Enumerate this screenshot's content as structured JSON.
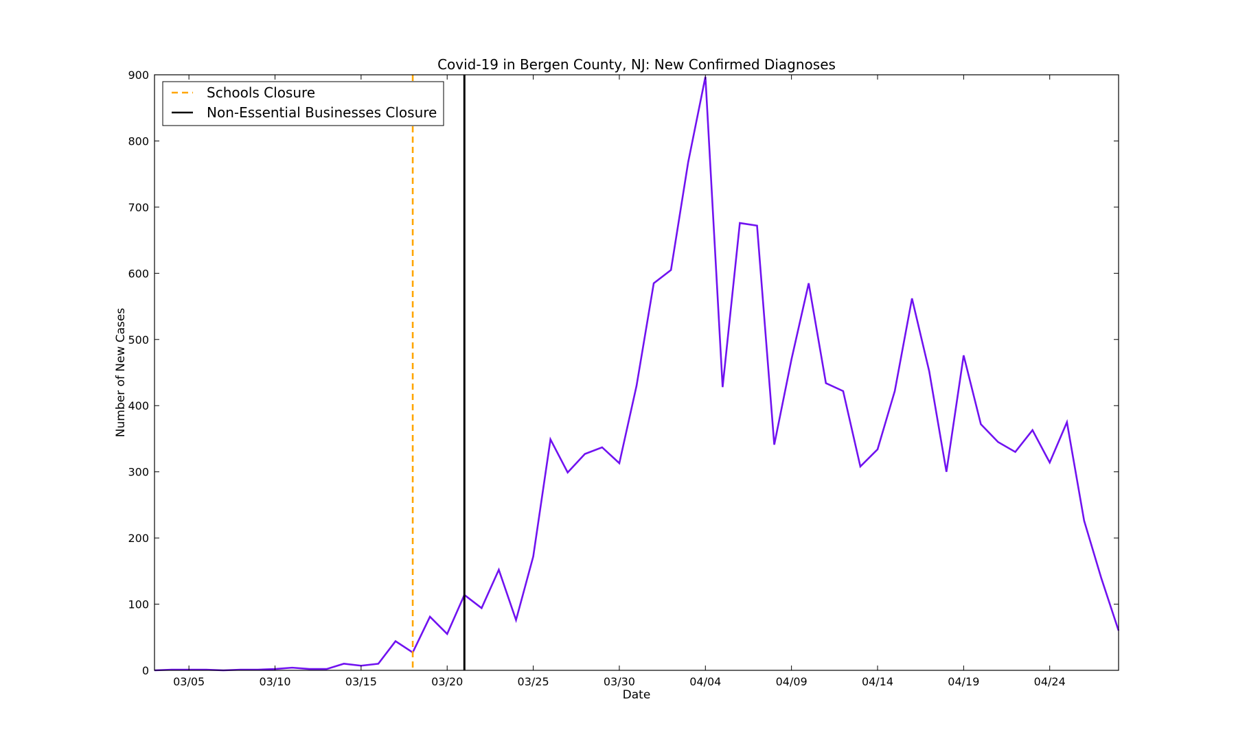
{
  "chart_data": {
    "type": "line",
    "title": "Covid-19 in Bergen County, NJ: New Confirmed Diagnoses",
    "xlabel": "Date",
    "ylabel": "Number of New Cases",
    "ylim": [
      0,
      900
    ],
    "yticks": [
      0,
      100,
      200,
      300,
      400,
      500,
      600,
      700,
      800,
      900
    ],
    "x_start": "03/03",
    "x_end": "04/28",
    "xticks": [
      "03/05",
      "03/10",
      "03/15",
      "03/20",
      "03/25",
      "03/30",
      "04/04",
      "04/09",
      "04/14",
      "04/19",
      "04/24"
    ],
    "grid": false,
    "legend_position": "top-left",
    "series": [
      {
        "color": "#7012f0",
        "x": [
          "03/03",
          "03/04",
          "03/05",
          "03/06",
          "03/07",
          "03/08",
          "03/09",
          "03/10",
          "03/11",
          "03/12",
          "03/13",
          "03/14",
          "03/15",
          "03/16",
          "03/17",
          "03/18",
          "03/19",
          "03/20",
          "03/21",
          "03/22",
          "03/23",
          "03/24",
          "03/25",
          "03/26",
          "03/27",
          "03/28",
          "03/29",
          "03/30",
          "03/31",
          "04/01",
          "04/02",
          "04/03",
          "04/04",
          "04/05",
          "04/06",
          "04/07",
          "04/08",
          "04/09",
          "04/10",
          "04/11",
          "04/12",
          "04/13",
          "04/14",
          "04/15",
          "04/16",
          "04/17",
          "04/18",
          "04/19",
          "04/20",
          "04/21",
          "04/22",
          "04/23",
          "04/24",
          "04/25",
          "04/26",
          "04/27",
          "04/28"
        ],
        "values": [
          0,
          1,
          1,
          1,
          0,
          1,
          1,
          2,
          4,
          2,
          2,
          10,
          7,
          10,
          44,
          27,
          81,
          55,
          114,
          94,
          152,
          76,
          172,
          349,
          299,
          327,
          337,
          313,
          430,
          585,
          605,
          768,
          897,
          428,
          676,
          672,
          341,
          470,
          585,
          434,
          422,
          308,
          334,
          422,
          562,
          452,
          300,
          476,
          372,
          345,
          330,
          363,
          314,
          375,
          226,
          139,
          60
        ]
      }
    ],
    "vlines": [
      {
        "label": "Schools Closure",
        "x": "03/18",
        "color": "#ffa500",
        "style": "dashed"
      },
      {
        "label": "Non-Essential Businesses Closure",
        "x": "03/21",
        "color": "#000000",
        "style": "solid"
      }
    ]
  }
}
